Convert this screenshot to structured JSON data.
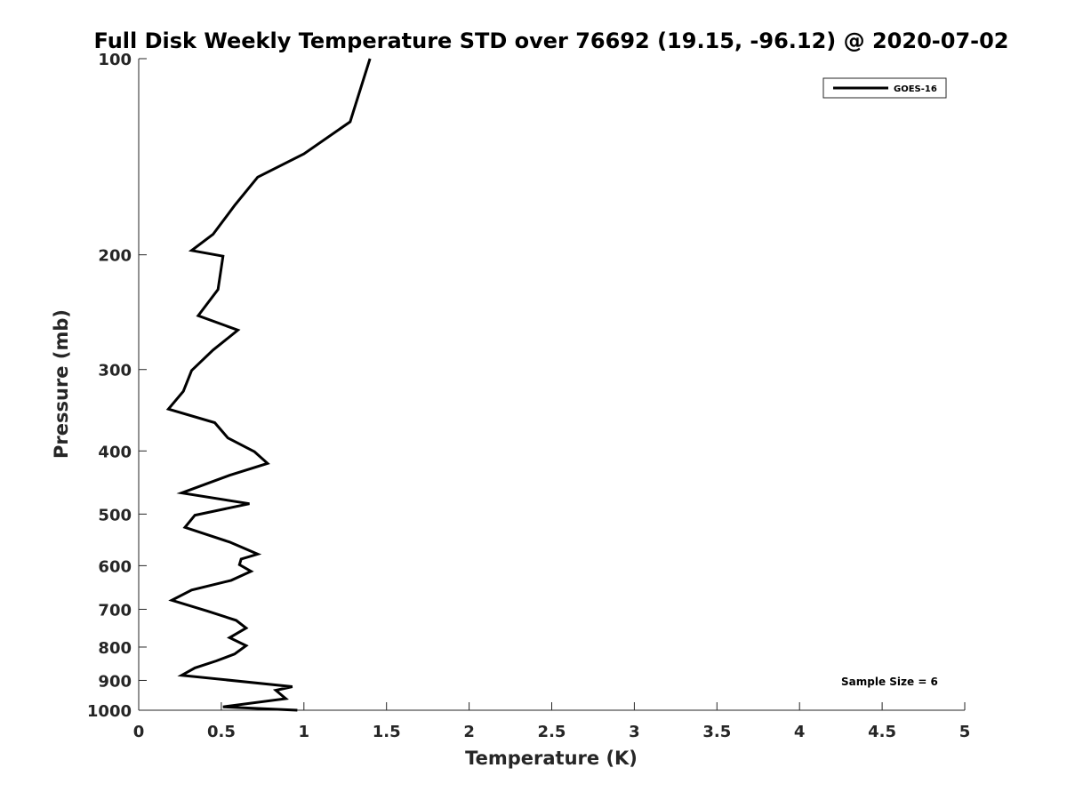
{
  "chart_data": {
    "type": "line",
    "title": "Full Disk Weekly Temperature STD over 76692 (19.15, -96.12) @ 2020-07-02",
    "xlabel": "Temperature (K)",
    "ylabel": "Pressure (mb)",
    "xlim": [
      0,
      5
    ],
    "ylim": [
      100,
      1000
    ],
    "yscale": "log",
    "y_reversed": true,
    "xticks": [
      0,
      0.5,
      1,
      1.5,
      2,
      2.5,
      3,
      3.5,
      4,
      4.5,
      5
    ],
    "xtick_labels": [
      "0",
      "0.5",
      "1",
      "1.5",
      "2",
      "2.5",
      "3",
      "3.5",
      "4",
      "4.5",
      "5"
    ],
    "yticks": [
      100,
      200,
      300,
      400,
      500,
      600,
      700,
      800,
      900,
      1000
    ],
    "ytick_labels": [
      "100",
      "200",
      "300",
      "400",
      "500",
      "600",
      "700",
      "800",
      "900",
      "1000"
    ],
    "grid": false,
    "legend_position": "top-right",
    "annotation": "Sample Size = 6",
    "series": [
      {
        "name": "GOES-16",
        "color": "#000000",
        "points": [
          [
            1.4,
            100
          ],
          [
            1.28,
            125
          ],
          [
            1.0,
            140
          ],
          [
            0.72,
            152
          ],
          [
            0.58,
            168
          ],
          [
            0.45,
            186
          ],
          [
            0.32,
            197
          ],
          [
            0.51,
            201
          ],
          [
            0.48,
            226
          ],
          [
            0.36,
            248
          ],
          [
            0.6,
            261
          ],
          [
            0.45,
            280
          ],
          [
            0.32,
            301
          ],
          [
            0.27,
            324
          ],
          [
            0.18,
            345
          ],
          [
            0.46,
            362
          ],
          [
            0.54,
            382
          ],
          [
            0.7,
            401
          ],
          [
            0.78,
            418
          ],
          [
            0.55,
            436
          ],
          [
            0.26,
            464
          ],
          [
            0.67,
            482
          ],
          [
            0.34,
            502
          ],
          [
            0.28,
            524
          ],
          [
            0.55,
            552
          ],
          [
            0.72,
            576
          ],
          [
            0.62,
            586
          ],
          [
            0.61,
            598
          ],
          [
            0.68,
            612
          ],
          [
            0.56,
            632
          ],
          [
            0.32,
            654
          ],
          [
            0.2,
            678
          ],
          [
            0.42,
            705
          ],
          [
            0.59,
            728
          ],
          [
            0.65,
            748
          ],
          [
            0.55,
            774
          ],
          [
            0.65,
            796
          ],
          [
            0.58,
            820
          ],
          [
            0.47,
            840
          ],
          [
            0.34,
            861
          ],
          [
            0.26,
            884
          ],
          [
            0.93,
            920
          ],
          [
            0.83,
            932
          ],
          [
            0.89,
            960
          ],
          [
            0.51,
            988
          ],
          [
            0.96,
            1000
          ]
        ]
      }
    ]
  }
}
